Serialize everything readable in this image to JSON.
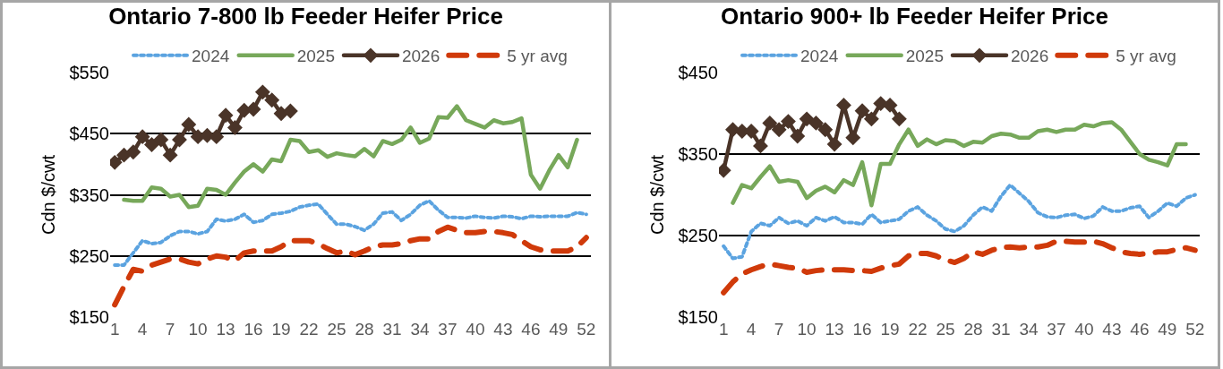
{
  "chart_data": [
    {
      "type": "line",
      "title": "Ontario 7-800 lb Feeder Heifer Price",
      "ylabel": "Cdn $/cwt",
      "x": [
        1,
        2,
        3,
        4,
        5,
        6,
        7,
        8,
        9,
        10,
        11,
        12,
        13,
        14,
        15,
        16,
        17,
        18,
        19,
        20,
        21,
        22,
        23,
        24,
        25,
        26,
        27,
        28,
        29,
        30,
        31,
        32,
        33,
        34,
        35,
        36,
        37,
        38,
        39,
        40,
        41,
        42,
        43,
        44,
        45,
        46,
        47,
        48,
        49,
        50,
        51,
        52
      ],
      "xlim": [
        0.5,
        52.5
      ],
      "xticks": [
        1,
        4,
        7,
        10,
        13,
        16,
        19,
        22,
        25,
        28,
        31,
        34,
        37,
        40,
        43,
        46,
        49,
        52
      ],
      "ylim": [
        150,
        550
      ],
      "yticks": [
        {
          "value": 150,
          "label": "$150"
        },
        {
          "value": 250,
          "label": "$250"
        },
        {
          "value": 350,
          "label": "$350"
        },
        {
          "value": 450,
          "label": "$450"
        },
        {
          "value": 550,
          "label": "$550"
        }
      ],
      "grid": "y",
      "legend": "top",
      "series": [
        {
          "name": "2024",
          "color": "#5ba3e0",
          "line_style": "dotted",
          "marker": "none",
          "values": [
            235,
            235,
            255,
            275,
            270,
            272,
            283,
            290,
            290,
            286,
            290,
            310,
            307,
            310,
            318,
            305,
            308,
            318,
            320,
            323,
            330,
            333,
            335,
            318,
            302,
            302,
            298,
            292,
            302,
            320,
            322,
            308,
            318,
            333,
            340,
            325,
            313,
            313,
            312,
            315,
            313,
            312,
            315,
            314,
            311,
            315,
            314,
            315,
            315,
            315,
            321,
            318
          ]
        },
        {
          "name": "2025",
          "color": "#77a85a",
          "line_style": "solid",
          "marker": "none",
          "values": [
            null,
            342,
            340,
            340,
            362,
            360,
            347,
            350,
            330,
            332,
            360,
            358,
            350,
            370,
            388,
            400,
            388,
            408,
            405,
            440,
            438,
            420,
            423,
            412,
            418,
            415,
            413,
            425,
            413,
            438,
            433,
            440,
            460,
            435,
            442,
            477,
            476,
            495,
            472,
            466,
            460,
            472,
            467,
            469,
            475,
            383,
            360,
            390,
            415,
            395,
            440,
            null
          ]
        },
        {
          "name": "2026",
          "color": "#4a3428",
          "line_style": "solid",
          "marker": "diamond",
          "values": [
            403,
            415,
            420,
            445,
            432,
            440,
            415,
            440,
            465,
            445,
            447,
            445,
            480,
            460,
            488,
            490,
            518,
            505,
            483,
            487,
            null,
            null,
            null,
            null,
            null,
            null,
            null,
            null,
            null,
            null,
            null,
            null,
            null,
            null,
            null,
            null,
            null,
            null,
            null,
            null,
            null,
            null,
            null,
            null,
            null,
            null,
            null,
            null,
            null,
            null,
            null,
            null
          ]
        },
        {
          "name": "5 yr avg",
          "color": "#d03a0a",
          "line_style": "dashed",
          "marker": "none",
          "values": [
            170,
            200,
            228,
            225,
            235,
            240,
            245,
            245,
            240,
            237,
            245,
            250,
            248,
            242,
            255,
            258,
            258,
            258,
            265,
            275,
            275,
            275,
            270,
            262,
            255,
            258,
            252,
            258,
            265,
            268,
            268,
            270,
            275,
            278,
            278,
            290,
            297,
            292,
            288,
            288,
            290,
            290,
            288,
            285,
            275,
            265,
            260,
            258,
            258,
            258,
            265,
            280
          ]
        }
      ]
    },
    {
      "type": "line",
      "title": "Ontario 900+ lb Feeder Heifer Price",
      "ylabel": "Cdn $/cwt",
      "x": [
        1,
        2,
        3,
        4,
        5,
        6,
        7,
        8,
        9,
        10,
        11,
        12,
        13,
        14,
        15,
        16,
        17,
        18,
        19,
        20,
        21,
        22,
        23,
        24,
        25,
        26,
        27,
        28,
        29,
        30,
        31,
        32,
        33,
        34,
        35,
        36,
        37,
        38,
        39,
        40,
        41,
        42,
        43,
        44,
        45,
        46,
        47,
        48,
        49,
        50,
        51,
        52
      ],
      "xlim": [
        0.5,
        52.5
      ],
      "xticks": [
        1,
        4,
        7,
        10,
        13,
        16,
        19,
        22,
        25,
        28,
        31,
        34,
        37,
        40,
        43,
        46,
        49,
        52
      ],
      "ylim": [
        150,
        450
      ],
      "yticks": [
        {
          "value": 150,
          "label": "$150"
        },
        {
          "value": 250,
          "label": "$250"
        },
        {
          "value": 350,
          "label": "$350"
        },
        {
          "value": 450,
          "label": "$450"
        }
      ],
      "grid": "y",
      "legend": "top",
      "series": [
        {
          "name": "2024",
          "color": "#5ba3e0",
          "line_style": "dotted",
          "marker": "none",
          "values": [
            237,
            222,
            224,
            255,
            265,
            262,
            272,
            265,
            268,
            262,
            272,
            268,
            273,
            266,
            266,
            264,
            276,
            266,
            268,
            270,
            280,
            285,
            275,
            268,
            258,
            255,
            262,
            275,
            285,
            280,
            298,
            312,
            302,
            292,
            278,
            273,
            272,
            275,
            276,
            271,
            274,
            285,
            280,
            280,
            284,
            286,
            272,
            280,
            290,
            286,
            296,
            300
          ]
        },
        {
          "name": "2025",
          "color": "#77a85a",
          "line_style": "solid",
          "marker": "none",
          "values": [
            null,
            290,
            312,
            308,
            322,
            335,
            316,
            318,
            316,
            296,
            305,
            310,
            303,
            318,
            312,
            340,
            287,
            338,
            338,
            362,
            380,
            360,
            368,
            362,
            367,
            366,
            360,
            365,
            364,
            372,
            375,
            374,
            370,
            370,
            378,
            380,
            377,
            380,
            380,
            386,
            384,
            388,
            389,
            380,
            365,
            350,
            343,
            340,
            336,
            362,
            362,
            null
          ]
        },
        {
          "name": "2026",
          "color": "#4a3428",
          "line_style": "solid",
          "marker": "diamond",
          "values": [
            330,
            380,
            378,
            378,
            360,
            388,
            380,
            390,
            372,
            393,
            388,
            380,
            362,
            410,
            370,
            403,
            393,
            412,
            410,
            393,
            null,
            null,
            null,
            null,
            null,
            null,
            null,
            null,
            null,
            null,
            null,
            null,
            null,
            null,
            null,
            null,
            null,
            null,
            null,
            null,
            null,
            null,
            null,
            null,
            null,
            null,
            null,
            null,
            null,
            null,
            null,
            null
          ]
        },
        {
          "name": "5 yr avg",
          "color": "#d03a0a",
          "line_style": "dashed",
          "marker": "none",
          "values": [
            180,
            193,
            203,
            208,
            212,
            215,
            213,
            211,
            210,
            205,
            207,
            208,
            208,
            208,
            207,
            207,
            206,
            210,
            213,
            215,
            225,
            228,
            228,
            225,
            220,
            217,
            222,
            230,
            227,
            232,
            235,
            236,
            235,
            236,
            236,
            238,
            243,
            243,
            242,
            242,
            243,
            240,
            235,
            230,
            228,
            227,
            228,
            230,
            230,
            233,
            235,
            232
          ]
        }
      ]
    }
  ]
}
